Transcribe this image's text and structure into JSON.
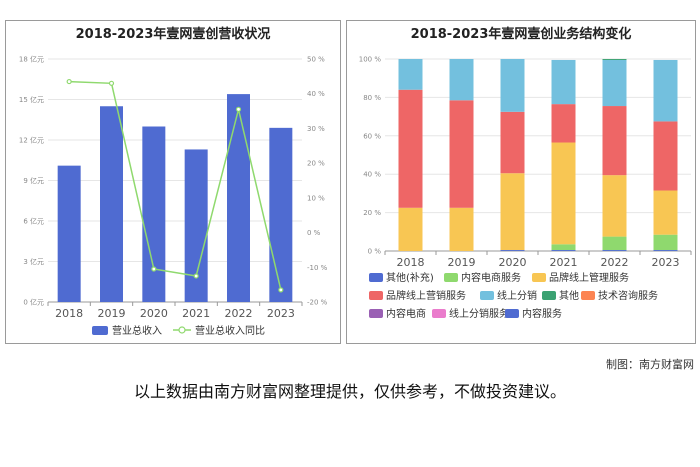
{
  "credit": "制图：南方财富网",
  "disclaimer": "以上数据由南方财富网整理提供，仅供参考，不做投资建议。",
  "colors": {
    "bar": "#4f6bd1",
    "line": "#8fd96e",
    "grid": "#e6e6e6",
    "axis": "#999999"
  },
  "chart_data": [
    {
      "type": "bar",
      "title": "2018-2023年壹网壹创营收状况",
      "categories": [
        "2018",
        "2019",
        "2020",
        "2021",
        "2022",
        "2023"
      ],
      "y_axis_left": {
        "ticks": [
          0,
          3,
          6,
          9,
          12,
          15,
          18
        ],
        "tick_labels": [
          "0 亿元",
          "3 亿元",
          "6 亿元",
          "9 亿元",
          "12 亿元",
          "15 亿元",
          "18 亿元"
        ],
        "range": [
          0,
          18
        ]
      },
      "y_axis_right": {
        "ticks": [
          -20,
          -10,
          0,
          10,
          20,
          30,
          40,
          50
        ],
        "tick_labels": [
          "-20 %",
          "-10 %",
          "0 %",
          "10 %",
          "20 %",
          "30 %",
          "40 %",
          "50 %"
        ],
        "range": [
          -20,
          50
        ]
      },
      "series": [
        {
          "name": "营业总收入",
          "type": "bar",
          "axis": "left",
          "values": [
            10.1,
            14.5,
            13.0,
            11.3,
            15.4,
            12.9
          ]
        },
        {
          "name": "营业总收入同比",
          "type": "line",
          "axis": "right",
          "values": [
            43.5,
            43.0,
            -10.5,
            -12.5,
            35.5,
            -16.5
          ]
        }
      ],
      "grid": true,
      "legend": "bottom"
    },
    {
      "type": "bar",
      "stacked": true,
      "title": "2018-2023年壹网壹创业务结构变化",
      "categories": [
        "2018",
        "2019",
        "2020",
        "2021",
        "2022",
        "2023"
      ],
      "y_axis": {
        "ticks": [
          0,
          20,
          40,
          60,
          80,
          100
        ],
        "tick_labels": [
          "0 %",
          "20 %",
          "40 %",
          "60 %",
          "80 %",
          "100 %"
        ],
        "range": [
          0,
          100
        ]
      },
      "series": [
        {
          "name": "其他(补充)",
          "color": "#4f6bd1",
          "values": [
            0,
            0,
            0.5,
            0.5,
            0.5,
            0.5
          ]
        },
        {
          "name": "内容电商服务",
          "color": "#8fd96e",
          "values": [
            0,
            0,
            0,
            3,
            7,
            8
          ]
        },
        {
          "name": "品牌线上管理服务",
          "color": "#f8c653",
          "values": [
            22.5,
            22.5,
            40,
            53,
            32,
            23
          ]
        },
        {
          "name": "品牌线上营销服务",
          "color": "#ee6666",
          "values": [
            61.5,
            56,
            32,
            20,
            36,
            36
          ]
        },
        {
          "name": "线上分销",
          "color": "#73c0de",
          "values": [
            16,
            21.5,
            27.5,
            23,
            24,
            32
          ]
        },
        {
          "name": "其他",
          "color": "#3ba272",
          "values": [
            0,
            0,
            0,
            0,
            0.5,
            0
          ]
        },
        {
          "name": "技术咨询服务",
          "color": "#fc8452",
          "values": [
            0,
            0,
            0,
            0,
            0,
            0
          ]
        },
        {
          "name": "内容电商",
          "color": "#9a60b4",
          "values": [
            0,
            0,
            0,
            0,
            0,
            0
          ]
        },
        {
          "name": "线上分销服务",
          "color": "#ea7ccc",
          "values": [
            0,
            0,
            0,
            0,
            0,
            0
          ]
        },
        {
          "name": "内容服务",
          "color": "#4f6bd1",
          "values": [
            0,
            0,
            0,
            0,
            0,
            0
          ]
        }
      ],
      "grid": true,
      "legend": "bottom"
    }
  ]
}
